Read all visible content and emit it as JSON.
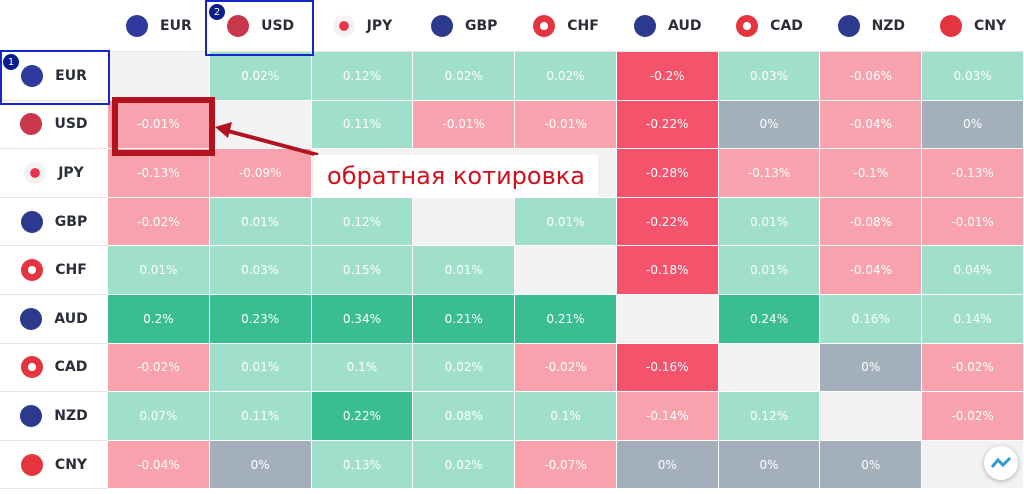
{
  "columns": [
    "EUR",
    "USD",
    "JPY",
    "GBP",
    "CHF",
    "AUD",
    "CAD",
    "NZD",
    "CNY"
  ],
  "rows": [
    {
      "currency": "EUR",
      "cells": [
        null,
        "0.02%",
        "0.12%",
        "0.02%",
        "0.02%",
        "-0.2%",
        "0.03%",
        "-0.06%",
        "0.03%"
      ]
    },
    {
      "currency": "USD",
      "cells": [
        "-0.01%",
        null,
        "0.11%",
        "-0.01%",
        "-0.01%",
        "-0.22%",
        "0%",
        "-0.04%",
        "0%"
      ]
    },
    {
      "currency": "JPY",
      "cells": [
        "-0.13%",
        "-0.09%",
        null,
        null,
        null,
        "-0.28%",
        "-0.13%",
        "-0.1%",
        "-0.13%"
      ]
    },
    {
      "currency": "GBP",
      "cells": [
        "-0.02%",
        "0.01%",
        "0.12%",
        null,
        "0.01%",
        "-0.22%",
        "0.01%",
        "-0.08%",
        "-0.01%"
      ]
    },
    {
      "currency": "CHF",
      "cells": [
        "0.01%",
        "0.03%",
        "0.15%",
        "0.01%",
        null,
        "-0.18%",
        "0.01%",
        "-0.04%",
        "0.04%"
      ]
    },
    {
      "currency": "AUD",
      "cells": [
        "0.2%",
        "0.23%",
        "0.34%",
        "0.21%",
        "0.21%",
        null,
        "0.24%",
        "0.16%",
        "0.14%"
      ]
    },
    {
      "currency": "CAD",
      "cells": [
        "-0.02%",
        "0.01%",
        "0.1%",
        "0.02%",
        "-0.02%",
        "-0.16%",
        null,
        "0%",
        "-0.02%"
      ]
    },
    {
      "currency": "NZD",
      "cells": [
        "0.07%",
        "0.11%",
        "0.22%",
        "0.08%",
        "0.1%",
        "-0.14%",
        "0.12%",
        null,
        "-0.02%"
      ]
    },
    {
      "currency": "CNY",
      "cells": [
        "-0.04%",
        "0%",
        "0.13%",
        "0.02%",
        "-0.07%",
        "0%",
        "0%",
        "0%",
        null
      ]
    }
  ],
  "badges": [
    "1",
    "2"
  ],
  "annotation": "обратная котировка"
}
